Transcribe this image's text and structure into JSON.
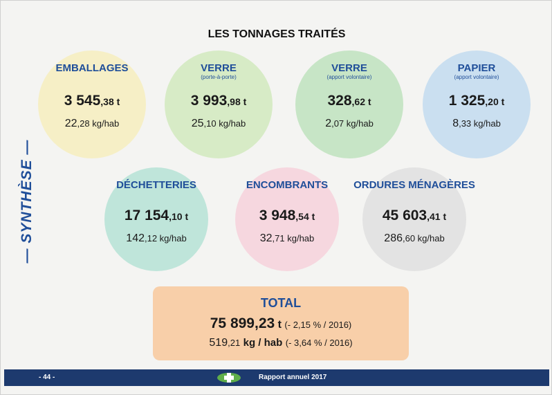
{
  "title": "LES TONNAGES TRAITÉS",
  "side_label": "— SYNTHÈSE —",
  "items": [
    {
      "name": "EMBALLAGES",
      "tonnage": "3 545",
      "tonnage_dec": ",38 t",
      "ratio": "22",
      "ratio_dec": ",28 kg/hab"
    },
    {
      "name": "VERRE",
      "sub": "(porte-à-porte)",
      "tonnage": "3 993",
      "tonnage_dec": ",98 t",
      "ratio": "25",
      "ratio_dec": ",10 kg/hab"
    },
    {
      "name": "VERRE",
      "sub": "(apport volontaire)",
      "tonnage": "328",
      "tonnage_dec": ",62 t",
      "ratio": "2",
      "ratio_dec": ",07 kg/hab"
    },
    {
      "name": "PAPIER",
      "sub": "(apport volontaire)",
      "tonnage": "1 325",
      "tonnage_dec": ",20 t",
      "ratio": "8",
      "ratio_dec": ",33 kg/hab"
    },
    {
      "name": "DÉCHETTERIES",
      "tonnage": "17 154",
      "tonnage_dec": ",10 t",
      "ratio": "142",
      "ratio_dec": ",12 kg/hab"
    },
    {
      "name": "ENCOMBRANTS",
      "tonnage": "3 948",
      "tonnage_dec": ",54 t",
      "ratio": "32",
      "ratio_dec": ",71 kg/hab"
    },
    {
      "name": "ORDURES MÉNAGÈRES",
      "tonnage": "45 603",
      "tonnage_dec": ",41 t",
      "ratio": "286",
      "ratio_dec": ",60 kg/hab"
    }
  ],
  "total": {
    "label": "TOTAL",
    "tonnage": "75 899,23",
    "tonnage_unit": "t",
    "tonnage_change": "(- 2,15 % / 2016)",
    "ratio": "519",
    "ratio_dec": ",21",
    "ratio_unit": "kg / hab",
    "ratio_change": "(- 3,64 % / 2016)"
  },
  "footer": {
    "page": "- 44 -",
    "report": "Rapport annuel 2017"
  }
}
